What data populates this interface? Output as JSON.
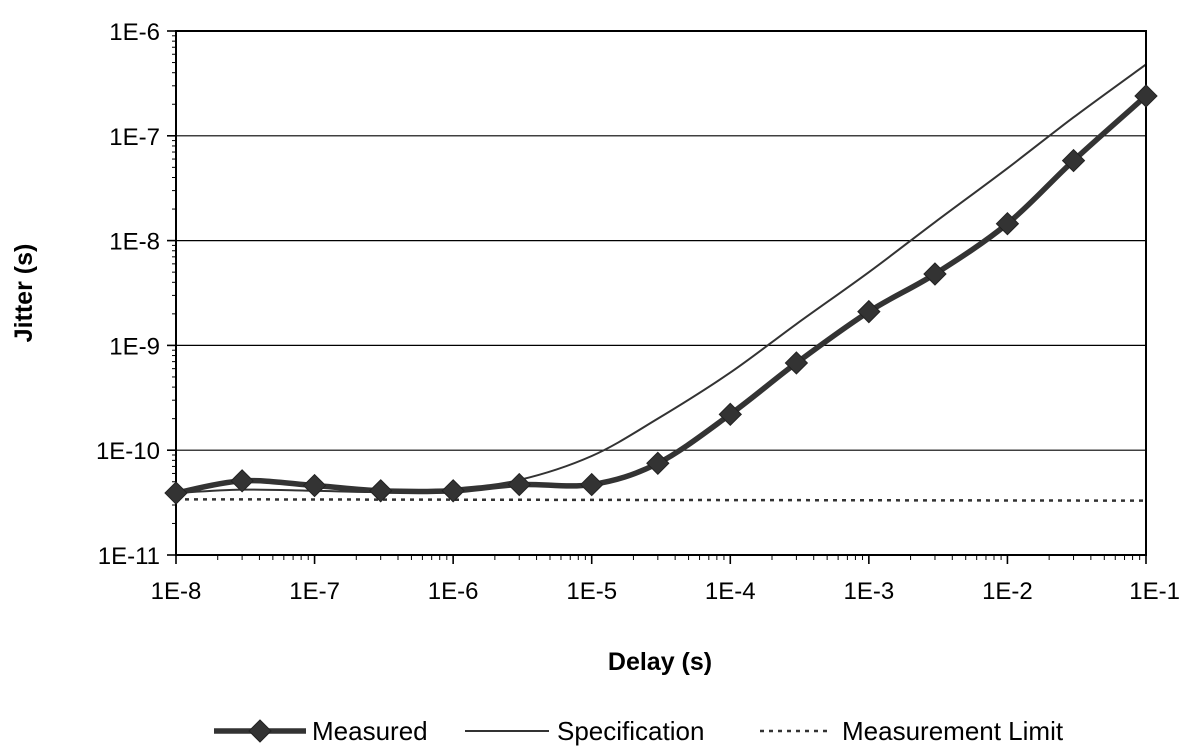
{
  "chart_data": {
    "type": "line",
    "title": "",
    "xlabel": "Delay (s)",
    "ylabel": "Jitter (s)",
    "x_scale": "log",
    "y_scale": "log",
    "xlim": [
      1e-08,
      0.1
    ],
    "ylim": [
      1e-11,
      1e-06
    ],
    "x_ticks": [
      1e-08,
      1e-07,
      1e-06,
      1e-05,
      0.0001,
      0.001,
      0.01,
      0.1
    ],
    "x_tick_labels": [
      "1E-8",
      "1E-7",
      "1E-6",
      "1E-5",
      "1E-4",
      "1E-3",
      "1E-2",
      "1E-1"
    ],
    "y_ticks": [
      1e-11,
      1e-10,
      1e-09,
      1e-08,
      1e-07,
      1e-06
    ],
    "y_tick_labels": [
      "1E-11",
      "1E-10",
      "1E-9",
      "1E-8",
      "1E-7",
      "1E-6"
    ],
    "grid": "horizontal",
    "legend_position": "bottom",
    "series": [
      {
        "name": "Measured",
        "style": "thick-line-diamond-markers",
        "color": "#333333",
        "x": [
          1e-08,
          3e-08,
          1e-07,
          3e-07,
          1e-06,
          3e-06,
          1e-05,
          3e-05,
          0.0001,
          0.0003,
          0.001,
          0.003,
          0.01,
          0.03,
          0.1
        ],
        "y": [
          3.9e-11,
          5.1e-11,
          4.6e-11,
          4.1e-11,
          4.1e-11,
          4.7e-11,
          4.7e-11,
          7.5e-11,
          2.2e-10,
          6.8e-10,
          2.1e-09,
          4.8e-09,
          1.45e-08,
          5.8e-08,
          2.4e-07
        ]
      },
      {
        "name": "Specification",
        "style": "thin-line",
        "color": "#333333",
        "x": [
          1e-08,
          3e-08,
          1e-07,
          3e-07,
          1e-06,
          3e-06,
          1e-05,
          3e-05,
          0.0001,
          0.0003,
          0.001,
          0.003,
          0.01,
          0.03,
          0.1
        ],
        "y": [
          3.9e-11,
          4.2e-11,
          4.1e-11,
          4e-11,
          4.3e-11,
          5.2e-11,
          8.8e-11,
          2e-10,
          5.5e-10,
          1.6e-09,
          5e-09,
          1.5e-08,
          4.9e-08,
          1.5e-07,
          4.8e-07
        ]
      },
      {
        "name": "Measurement Limit",
        "style": "dotted-line",
        "color": "#333333",
        "x": [
          1e-08,
          0.1
        ],
        "y": [
          3.4e-11,
          3.3e-11
        ]
      }
    ]
  }
}
